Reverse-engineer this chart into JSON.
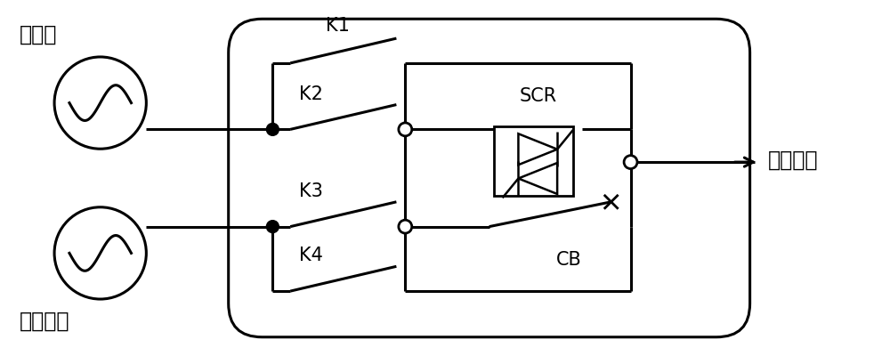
{
  "bg_color": "#ffffff",
  "line_color": "#000000",
  "line_width": 2.2,
  "label_main_source": "主电源",
  "label_backup_source": "备用电源",
  "label_load": "用电设备",
  "label_k1": "K1",
  "label_k2": "K2",
  "label_k3": "K3",
  "label_k4": "K4",
  "label_scr": "SCR",
  "label_cb": "CB",
  "font_size_label": 17,
  "font_size_comp": 15
}
